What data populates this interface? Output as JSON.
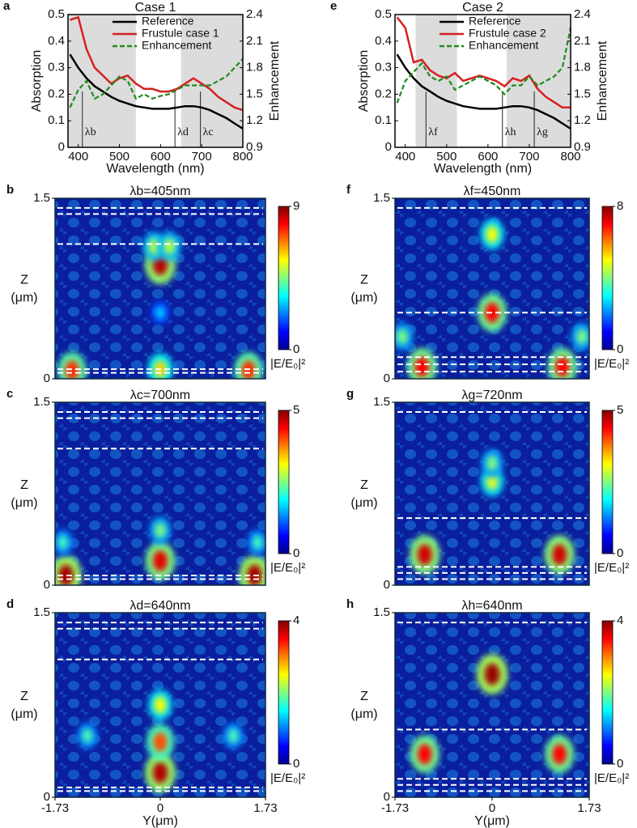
{
  "chart_data": [
    {
      "type": "line",
      "label": "a",
      "title": "Case 1",
      "xlabel": "Wavelength (nm)",
      "ylabel": "Absorption",
      "y2label": "Enhancement",
      "x": [
        380,
        400,
        420,
        440,
        460,
        480,
        500,
        520,
        540,
        560,
        580,
        600,
        620,
        640,
        660,
        680,
        700,
        720,
        740,
        760,
        780,
        800
      ],
      "series": [
        {
          "name": "Reference",
          "color": "#000000",
          "values": [
            0.35,
            0.3,
            0.26,
            0.23,
            0.21,
            0.19,
            0.175,
            0.165,
            0.155,
            0.15,
            0.145,
            0.145,
            0.145,
            0.15,
            0.155,
            0.155,
            0.15,
            0.14,
            0.125,
            0.11,
            0.09,
            0.07
          ]
        },
        {
          "name": "Frustule case 1",
          "color": "#d62020",
          "values": [
            0.48,
            0.49,
            0.37,
            0.3,
            0.27,
            0.24,
            0.26,
            0.27,
            0.24,
            0.22,
            0.22,
            0.21,
            0.21,
            0.22,
            0.24,
            0.26,
            0.24,
            0.22,
            0.19,
            0.17,
            0.15,
            0.14
          ]
        },
        {
          "name": "Enhancement",
          "color": "#1e8a1e",
          "axis": "y2",
          "dashed": true,
          "values": [
            1.35,
            1.55,
            1.65,
            1.45,
            1.5,
            1.6,
            1.7,
            1.65,
            1.45,
            1.5,
            1.45,
            1.48,
            1.5,
            1.55,
            1.6,
            1.6,
            1.6,
            1.6,
            1.65,
            1.7,
            1.8,
            1.9
          ]
        }
      ],
      "spans": [
        [
          375,
          540
        ],
        [
          650,
          800
        ]
      ],
      "markers": [
        {
          "x": 410,
          "label": "λb"
        },
        {
          "x": 635,
          "label": "λd"
        },
        {
          "x": 697,
          "label": "λc"
        }
      ],
      "xlim": [
        375,
        800
      ],
      "xticks": [
        400,
        500,
        600,
        700,
        800
      ],
      "ylim": [
        0,
        0.5
      ],
      "yticks": [
        0,
        0.1,
        0.2,
        0.3,
        0.4,
        0.5
      ],
      "y2lim": [
        0.9,
        2.4
      ],
      "y2ticks": [
        0.9,
        1.2,
        1.5,
        1.8,
        2.1,
        2.4
      ]
    },
    {
      "type": "heatmap",
      "label": "b",
      "title": "λb=405nm",
      "ylabel": [
        "Z",
        "(μm)"
      ],
      "xlim": [
        -1.73,
        1.73
      ],
      "ylim": [
        0,
        1.5
      ],
      "yticks": [
        0,
        1.5
      ],
      "clim": [
        0,
        9
      ],
      "cticks": [
        0,
        9
      ],
      "clabel": "|E/E₀|²",
      "dashed_z": [
        1.42,
        1.37,
        1.12,
        0.08,
        0.05
      ],
      "hotspots": [
        {
          "y": -1.45,
          "z": 0.07,
          "v": 7.5
        },
        {
          "y": 0,
          "z": 0.08,
          "v": 6
        },
        {
          "y": 1.45,
          "z": 0.07,
          "v": 7.5
        },
        {
          "y": 0,
          "z": 0.95,
          "v": 8.5
        },
        {
          "y": -0.1,
          "z": 1.1,
          "v": 5
        },
        {
          "y": 0.15,
          "z": 1.1,
          "v": 5
        },
        {
          "y": 0,
          "z": 0.55,
          "v": 3
        }
      ]
    },
    {
      "type": "heatmap",
      "label": "c",
      "title": "λc=700nm",
      "ylabel": [
        "Z",
        "(μm)"
      ],
      "xlim": [
        -1.73,
        1.73
      ],
      "ylim": [
        0,
        1.5
      ],
      "yticks": [
        0,
        1.5
      ],
      "clim": [
        0,
        5
      ],
      "cticks": [
        0,
        5
      ],
      "clabel": "|E/E₀|²",
      "dashed_z": [
        1.42,
        1.37,
        1.12,
        0.08,
        0.05
      ],
      "hotspots": [
        {
          "y": -1.55,
          "z": 0.08,
          "v": 4.8
        },
        {
          "y": 0,
          "z": 0.2,
          "v": 4.5
        },
        {
          "y": 1.55,
          "z": 0.08,
          "v": 4.8
        },
        {
          "y": 0,
          "z": 0.45,
          "v": 2.5
        },
        {
          "y": -1.6,
          "z": 0.35,
          "v": 2.2
        },
        {
          "y": 1.6,
          "z": 0.35,
          "v": 2.2
        }
      ]
    },
    {
      "type": "heatmap",
      "label": "d",
      "title": "λd=640nm",
      "ylabel": [
        "Z",
        "(μm)"
      ],
      "xlabel": "Y(μm)",
      "xlim": [
        -1.73,
        1.73
      ],
      "xticks": [
        -1.73,
        0,
        1.73
      ],
      "ylim": [
        0,
        1.5
      ],
      "yticks": [
        0,
        1.5
      ],
      "clim": [
        0,
        4
      ],
      "cticks": [
        0,
        4
      ],
      "clabel": "|E/E₀|²",
      "dashed_z": [
        1.42,
        1.37,
        1.12,
        0.08,
        0.05
      ],
      "hotspots": [
        {
          "y": 0,
          "z": 0.2,
          "v": 3.8
        },
        {
          "y": 0,
          "z": 0.45,
          "v": 3.2
        },
        {
          "y": 0,
          "z": 0.75,
          "v": 2.5
        },
        {
          "y": -1.2,
          "z": 0.5,
          "v": 1.8
        },
        {
          "y": 1.2,
          "z": 0.5,
          "v": 1.8
        }
      ]
    },
    {
      "type": "line",
      "label": "e",
      "title": "Case 2",
      "xlabel": "Wavelength (nm)",
      "ylabel": "Absorption",
      "y2label": "Enhancement",
      "x": [
        380,
        400,
        420,
        440,
        460,
        480,
        500,
        520,
        540,
        560,
        580,
        600,
        620,
        640,
        660,
        680,
        700,
        720,
        740,
        760,
        780,
        800
      ],
      "series": [
        {
          "name": "Reference",
          "color": "#000000",
          "values": [
            0.35,
            0.3,
            0.26,
            0.23,
            0.21,
            0.19,
            0.175,
            0.165,
            0.155,
            0.15,
            0.145,
            0.145,
            0.145,
            0.15,
            0.155,
            0.155,
            0.15,
            0.14,
            0.125,
            0.11,
            0.09,
            0.07
          ]
        },
        {
          "name": "Frustule case 2",
          "color": "#d62020",
          "values": [
            0.49,
            0.45,
            0.32,
            0.33,
            0.29,
            0.27,
            0.26,
            0.28,
            0.25,
            0.26,
            0.27,
            0.26,
            0.25,
            0.23,
            0.26,
            0.25,
            0.27,
            0.22,
            0.19,
            0.17,
            0.15,
            0.15
          ]
        },
        {
          "name": "Enhancement",
          "color": "#1e8a1e",
          "axis": "y2",
          "dashed": true,
          "values": [
            1.4,
            1.65,
            1.75,
            1.85,
            1.7,
            1.65,
            1.7,
            1.55,
            1.6,
            1.65,
            1.7,
            1.65,
            1.6,
            1.5,
            1.6,
            1.6,
            1.7,
            1.6,
            1.65,
            1.7,
            1.8,
            2.25
          ]
        }
      ],
      "spans": [
        [
          425,
          525
        ],
        [
          645,
          800
        ]
      ],
      "markers": [
        {
          "x": 450,
          "label": "λf"
        },
        {
          "x": 635,
          "label": "λh"
        },
        {
          "x": 712,
          "label": "λg"
        }
      ],
      "xlim": [
        375,
        800
      ],
      "xticks": [
        400,
        500,
        600,
        700,
        800
      ],
      "ylim": [
        0,
        0.5
      ],
      "yticks": [
        0,
        0.1,
        0.2,
        0.3,
        0.4,
        0.5
      ],
      "y2lim": [
        0.9,
        2.4
      ],
      "y2ticks": [
        0.9,
        1.2,
        1.5,
        1.8,
        2.1,
        2.4
      ]
    },
    {
      "type": "heatmap",
      "label": "f",
      "title": "λf=450nm",
      "ylabel": [
        "Z",
        "(μm)"
      ],
      "xlim": [
        -1.73,
        1.73
      ],
      "ylim": [
        0,
        1.5
      ],
      "yticks": [
        0,
        1.5
      ],
      "clim": [
        0,
        8
      ],
      "cticks": [
        0,
        8
      ],
      "clabel": "|E/E₀|²",
      "dashed_z": [
        1.42,
        0.55,
        0.18,
        0.12,
        0.06
      ],
      "hotspots": [
        {
          "y": -1.25,
          "z": 0.1,
          "v": 7
        },
        {
          "y": 1.25,
          "z": 0.1,
          "v": 7
        },
        {
          "y": 0,
          "z": 0.55,
          "v": 7
        },
        {
          "y": 0,
          "z": 1.2,
          "v": 5
        },
        {
          "y": -1.6,
          "z": 0.35,
          "v": 4
        },
        {
          "y": 1.6,
          "z": 0.35,
          "v": 4
        }
      ]
    },
    {
      "type": "heatmap",
      "label": "g",
      "title": "λg=720nm",
      "ylabel": [
        "Z",
        "(μm)"
      ],
      "xlim": [
        -1.73,
        1.73
      ],
      "ylim": [
        0,
        1.5
      ],
      "yticks": [
        0,
        1.5
      ],
      "clim": [
        0,
        5
      ],
      "cticks": [
        0,
        5
      ],
      "clabel": "|E/E₀|²",
      "dashed_z": [
        1.42,
        0.55,
        0.15,
        0.1,
        0.05
      ],
      "hotspots": [
        {
          "y": -1.2,
          "z": 0.25,
          "v": 4.6
        },
        {
          "y": 1.2,
          "z": 0.25,
          "v": 4.6
        },
        {
          "y": 0,
          "z": 0.85,
          "v": 3
        },
        {
          "y": 0,
          "z": 1.0,
          "v": 2.5
        }
      ]
    },
    {
      "type": "heatmap",
      "label": "h",
      "title": "λh=640nm",
      "ylabel": [
        "Z",
        "(μm)"
      ],
      "xlabel": "Y(μm)",
      "xlim": [
        -1.73,
        1.73
      ],
      "xticks": [
        -1.73,
        0,
        1.73
      ],
      "ylim": [
        0,
        1.5
      ],
      "yticks": [
        0,
        1.5
      ],
      "clim": [
        0,
        4
      ],
      "cticks": [
        0,
        4
      ],
      "clabel": "|E/E₀|²",
      "dashed_z": [
        1.42,
        0.55,
        0.15,
        0.1,
        0.05
      ],
      "hotspots": [
        {
          "y": -1.2,
          "z": 0.35,
          "v": 3.5
        },
        {
          "y": 1.2,
          "z": 0.35,
          "v": 3.5
        },
        {
          "y": 0,
          "z": 1.0,
          "v": 3.9
        }
      ]
    }
  ]
}
